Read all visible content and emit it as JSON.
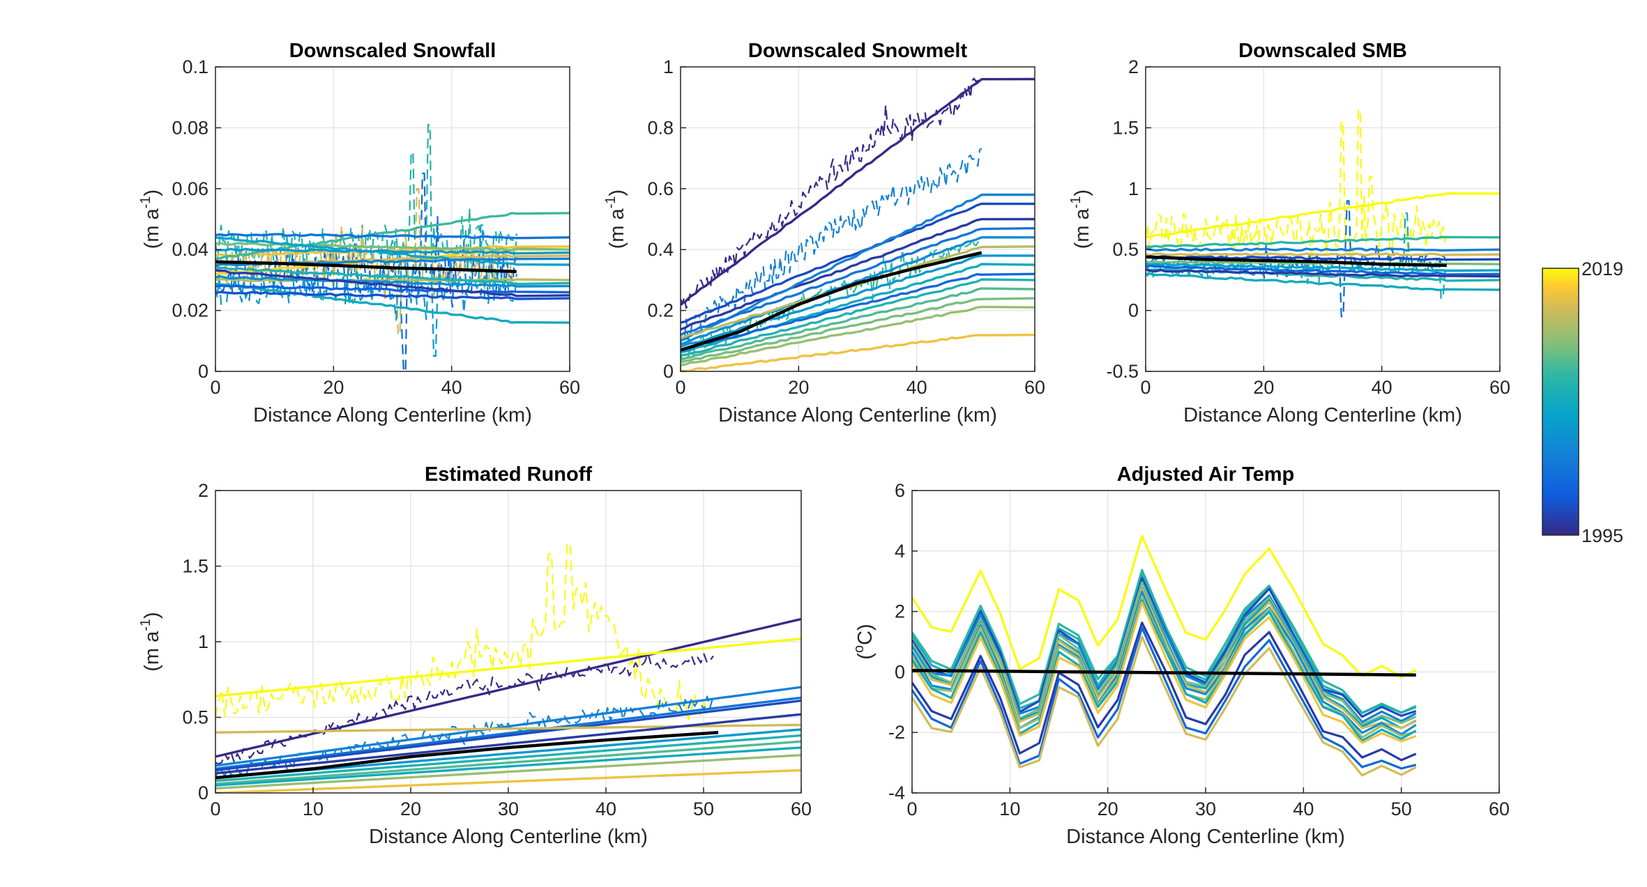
{
  "chart_data": [
    {
      "type": "line",
      "title": "Downscaled Snowfall",
      "xlabel": "Distance Along Centerline (km)",
      "ylabel_main": "(m a",
      "ylabel_sup": "-1",
      "ylabel_close": ")",
      "xlim": [
        0,
        60
      ],
      "ylim": [
        0,
        0.1
      ],
      "xticks": [
        0,
        20,
        40,
        60
      ],
      "xtick_labels": [
        "0",
        "20",
        "40",
        "60"
      ],
      "yticks": [
        0,
        0.02,
        0.04,
        0.06,
        0.08,
        0.1
      ],
      "ytick_labels": [
        "0",
        "0.02",
        "0.04",
        "0.06",
        "0.08",
        "0.1"
      ],
      "grid": true,
      "mean": {
        "x": [
          0,
          10,
          20,
          30,
          40,
          51
        ],
        "y": [
          0.036,
          0.0355,
          0.0348,
          0.034,
          0.0335,
          0.0328
        ]
      },
      "fan": [
        {
          "t": 0.95,
          "y0": 0.032,
          "y1": 0.04
        },
        {
          "t": 0.9,
          "y0": 0.038,
          "y1": 0.041
        },
        {
          "t": 0.85,
          "y0": 0.035,
          "y1": 0.038
        },
        {
          "t": 0.8,
          "y0": 0.03,
          "y1": 0.03
        },
        {
          "t": 0.7,
          "y0": 0.042,
          "y1": 0.04
        },
        {
          "t": 0.62,
          "y0": 0.037,
          "y1": 0.052
        },
        {
          "t": 0.55,
          "y0": 0.034,
          "y1": 0.029
        },
        {
          "t": 0.5,
          "y0": 0.029,
          "y1": 0.016
        },
        {
          "t": 0.45,
          "y0": 0.044,
          "y1": 0.035
        },
        {
          "t": 0.4,
          "y0": 0.04,
          "y1": 0.039
        },
        {
          "t": 0.35,
          "y0": 0.031,
          "y1": 0.028
        },
        {
          "t": 0.3,
          "y0": 0.035,
          "y1": 0.037
        },
        {
          "t": 0.25,
          "y0": 0.045,
          "y1": 0.044
        },
        {
          "t": 0.18,
          "y0": 0.028,
          "y1": 0.026
        },
        {
          "t": 0.12,
          "y0": 0.026,
          "y1": 0.024
        },
        {
          "t": 0.05,
          "y0": 0.033,
          "y1": 0.025
        }
      ],
      "fan_x1": 60,
      "spiky": [
        {
          "t": 0.55,
          "base": 0.04,
          "amp": 0.008,
          "spikes": [
            [
              33,
              0.072
            ],
            [
              36,
              0.081
            ]
          ]
        },
        {
          "t": 0.2,
          "base": 0.032,
          "amp": 0.007,
          "spikes": [
            [
              32,
              0.0
            ],
            [
              35,
              0.065
            ]
          ]
        },
        {
          "t": 0.85,
          "base": 0.035,
          "amp": 0.007,
          "spikes": [
            [
              34,
              0.06
            ],
            [
              31,
              0.012
            ]
          ]
        },
        {
          "t": 0.4,
          "base": 0.028,
          "amp": 0.006,
          "spikes": [
            [
              37,
              0.005
            ],
            [
              45,
              0.048
            ]
          ]
        }
      ],
      "spiky_x1": 51
    },
    {
      "type": "line",
      "title": "Downscaled Snowmelt",
      "xlabel": "Distance Along Centerline (km)",
      "ylabel_main": "(m a",
      "ylabel_sup": "-1",
      "ylabel_close": ")",
      "xlim": [
        0,
        60
      ],
      "ylim": [
        0,
        1
      ],
      "xticks": [
        0,
        20,
        40,
        60
      ],
      "xtick_labels": [
        "0",
        "20",
        "40",
        "60"
      ],
      "yticks": [
        0,
        0.2,
        0.4,
        0.6,
        0.8,
        1
      ],
      "ytick_labels": [
        "0",
        "0.2",
        "0.4",
        "0.6",
        "0.8",
        "1"
      ],
      "grid": true,
      "mean": {
        "x": [
          0,
          10,
          20,
          30,
          40,
          51
        ],
        "y": [
          0.07,
          0.13,
          0.22,
          0.29,
          0.34,
          0.39
        ]
      },
      "fan": [
        {
          "t": 0.0,
          "y0": 0.22,
          "y1": 0.96
        },
        {
          "t": 0.1,
          "y0": 0.16,
          "y1": 0.55
        },
        {
          "t": 0.05,
          "y0": 0.14,
          "y1": 0.5
        },
        {
          "t": 0.3,
          "y0": 0.1,
          "y1": 0.58
        },
        {
          "t": 0.25,
          "y0": 0.12,
          "y1": 0.47
        },
        {
          "t": 0.35,
          "y0": 0.09,
          "y1": 0.44
        },
        {
          "t": 0.8,
          "y0": 0.11,
          "y1": 0.41
        },
        {
          "t": 0.4,
          "y0": 0.08,
          "y1": 0.38
        },
        {
          "t": 0.5,
          "y0": 0.06,
          "y1": 0.35
        },
        {
          "t": 0.2,
          "y0": 0.07,
          "y1": 0.32
        },
        {
          "t": 0.55,
          "y0": 0.05,
          "y1": 0.3
        },
        {
          "t": 0.65,
          "y0": 0.04,
          "y1": 0.27
        },
        {
          "t": 0.7,
          "y0": 0.03,
          "y1": 0.24
        },
        {
          "t": 0.75,
          "y0": 0.02,
          "y1": 0.21
        },
        {
          "t": 0.9,
          "y0": 0.0,
          "y1": 0.12
        }
      ],
      "fan_x1": 60,
      "spiky": [
        {
          "t": 0.0,
          "base_curve": [
            [
              0,
              0.22
            ],
            [
              20,
              0.55
            ],
            [
              35,
              0.8
            ],
            [
              45,
              0.84
            ],
            [
              51,
              0.96
            ]
          ],
          "amp": 0.03
        },
        {
          "t": 0.3,
          "base_curve": [
            [
              0,
              0.12
            ],
            [
              25,
              0.45
            ],
            [
              51,
              0.7
            ]
          ],
          "amp": 0.04
        },
        {
          "t": 0.6,
          "base_curve": [
            [
              0,
              0.06
            ],
            [
              25,
              0.25
            ],
            [
              51,
              0.42
            ]
          ],
          "amp": 0.03
        }
      ],
      "spiky_x1": 51
    },
    {
      "type": "line",
      "title": "Downscaled SMB",
      "xlabel": "Distance Along Centerline (km)",
      "ylabel_main": "(m a",
      "ylabel_sup": "-1",
      "ylabel_close": ")",
      "xlim": [
        0,
        60
      ],
      "ylim": [
        -0.5,
        2
      ],
      "xticks": [
        0,
        20,
        40,
        60
      ],
      "xtick_labels": [
        "0",
        "20",
        "40",
        "60"
      ],
      "yticks": [
        -0.5,
        0,
        0.5,
        1,
        1.5,
        2
      ],
      "ytick_labels": [
        "-0.5",
        "0",
        "0.5",
        "1",
        "1.5",
        "2"
      ],
      "grid": true,
      "mean": {
        "x": [
          0,
          10,
          20,
          30,
          40,
          51
        ],
        "y": [
          0.44,
          0.42,
          0.41,
          0.4,
          0.38,
          0.37
        ]
      },
      "fan": [
        {
          "t": 1.0,
          "y0": 0.6,
          "y1": 0.96
        },
        {
          "t": 0.6,
          "y0": 0.52,
          "y1": 0.6
        },
        {
          "t": 0.3,
          "y0": 0.5,
          "y1": 0.5
        },
        {
          "t": 0.85,
          "y0": 0.46,
          "y1": 0.46
        },
        {
          "t": 0.1,
          "y0": 0.44,
          "y1": 0.42
        },
        {
          "t": 0.7,
          "y0": 0.4,
          "y1": 0.38
        },
        {
          "t": 0.45,
          "y0": 0.38,
          "y1": 0.33
        },
        {
          "t": 0.2,
          "y0": 0.36,
          "y1": 0.3
        },
        {
          "t": 0.55,
          "y0": 0.34,
          "y1": 0.25
        },
        {
          "t": 0.05,
          "y0": 0.33,
          "y1": 0.28
        },
        {
          "t": 0.5,
          "y0": 0.3,
          "y1": 0.17
        }
      ],
      "fan_x1": 60,
      "spiky": [
        {
          "t": 1.0,
          "base": 0.65,
          "amp": 0.15,
          "spikes": [
            [
              33,
              1.55
            ],
            [
              36,
              1.65
            ],
            [
              38,
              1.1
            ]
          ]
        },
        {
          "t": 0.2,
          "base": 0.4,
          "amp": 0.06,
          "spikes": [
            [
              34,
              0.9
            ],
            [
              33,
              -0.05
            ]
          ]
        },
        {
          "t": 0.5,
          "base": 0.35,
          "amp": 0.08,
          "spikes": [
            [
              44,
              0.8
            ],
            [
              50,
              0.1
            ]
          ]
        }
      ],
      "spiky_x1": 51
    },
    {
      "type": "line",
      "title": "Estimated Runoff",
      "xlabel": "Distance Along Centerline (km)",
      "ylabel_main": "(m a",
      "ylabel_sup": "-1",
      "ylabel_close": ")",
      "xlim": [
        0,
        60
      ],
      "ylim": [
        0,
        2
      ],
      "xticks": [
        0,
        10,
        20,
        30,
        40,
        50,
        60
      ],
      "xtick_labels": [
        "0",
        "10",
        "20",
        "30",
        "40",
        "50",
        "60"
      ],
      "yticks": [
        0,
        0.5,
        1,
        1.5,
        2
      ],
      "ytick_labels": [
        "0",
        "0.5",
        "1",
        "1.5",
        "2"
      ],
      "grid": true,
      "mean": {
        "x": [
          0,
          10,
          20,
          30,
          40,
          51.5
        ],
        "y": [
          0.1,
          0.16,
          0.24,
          0.3,
          0.35,
          0.4
        ]
      },
      "fan": [
        {
          "t": 0.0,
          "y0": 0.24,
          "y1": 1.15
        },
        {
          "t": 1.0,
          "y0": 0.64,
          "y1": 1.02
        },
        {
          "t": 0.3,
          "y0": 0.18,
          "y1": 0.7
        },
        {
          "t": 0.25,
          "y0": 0.16,
          "y1": 0.63
        },
        {
          "t": 0.1,
          "y0": 0.15,
          "y1": 0.61
        },
        {
          "t": 0.85,
          "y0": 0.4,
          "y1": 0.45
        },
        {
          "t": 0.05,
          "y0": 0.13,
          "y1": 0.52
        },
        {
          "t": 0.4,
          "y0": 0.1,
          "y1": 0.42
        },
        {
          "t": 0.55,
          "y0": 0.08,
          "y1": 0.38
        },
        {
          "t": 0.65,
          "y0": 0.06,
          "y1": 0.34
        },
        {
          "t": 0.5,
          "y0": 0.05,
          "y1": 0.3
        },
        {
          "t": 0.75,
          "y0": 0.03,
          "y1": 0.25
        },
        {
          "t": 0.9,
          "y0": 0.0,
          "y1": 0.15
        }
      ],
      "fan_x1": 60,
      "spiky": [
        {
          "t": 1.0,
          "base_curve": [
            [
              0,
              0.6
            ],
            [
              20,
              0.7
            ],
            [
              30,
              0.95
            ],
            [
              38,
              1.3
            ],
            [
              45,
              0.6
            ],
            [
              51,
              0.55
            ]
          ],
          "amp": 0.1,
          "spikes": [
            [
              34,
              1.58
            ],
            [
              36,
              1.65
            ]
          ]
        },
        {
          "t": 0.0,
          "base_curve": [
            [
              0,
              0.2
            ],
            [
              25,
              0.7
            ],
            [
              51,
              0.9
            ]
          ],
          "amp": 0.04
        },
        {
          "t": 0.3,
          "base_curve": [
            [
              0,
              0.12
            ],
            [
              25,
              0.4
            ],
            [
              51,
              0.6
            ]
          ],
          "amp": 0.05
        }
      ],
      "spiky_x1": 51
    },
    {
      "type": "line",
      "title": "Adjusted Air Temp",
      "xlabel": "Distance Along Centerline (km)",
      "ylabel_main": "(",
      "ylabel_sup": "o",
      "ylabel_close": "C)",
      "xlim": [
        0,
        60
      ],
      "ylim": [
        -4,
        6
      ],
      "xticks": [
        0,
        10,
        20,
        30,
        40,
        50,
        60
      ],
      "xtick_labels": [
        "0",
        "10",
        "20",
        "30",
        "40",
        "50",
        "60"
      ],
      "yticks": [
        -4,
        -2,
        0,
        2,
        4,
        6
      ],
      "ytick_labels": [
        "-4",
        "-2",
        "0",
        "2",
        "4",
        "6"
      ],
      "grid": true,
      "mean": {
        "x": [
          0,
          51.5
        ],
        "y": [
          0.05,
          -0.1
        ]
      },
      "temp_profile": {
        "x": [
          0,
          2,
          4,
          7,
          9,
          11,
          13,
          15,
          17,
          19,
          21,
          23.5,
          26,
          28,
          30,
          32,
          34,
          36.5,
          39,
          42,
          44,
          46,
          48,
          50,
          51.5
        ],
        "y": [
          1.0,
          0.0,
          -0.2,
          1.9,
          0.5,
          -1.4,
          -1.1,
          1.3,
          0.9,
          -0.6,
          0.3,
          3.0,
          1.2,
          -0.2,
          -0.4,
          0.6,
          1.8,
          2.6,
          1.2,
          -0.6,
          -0.9,
          -1.6,
          -1.3,
          -1.6,
          -1.4
        ]
      },
      "offsets": [
        {
          "t": 1.0,
          "dy": 1.5
        },
        {
          "t": 0.6,
          "dy": 0.3
        },
        {
          "t": 0.55,
          "dy": 0.2
        },
        {
          "t": 0.1,
          "dy": 0.1
        },
        {
          "t": 0.3,
          "dy": 0.0
        },
        {
          "t": 0.7,
          "dy": -0.1
        },
        {
          "t": 0.45,
          "dy": -0.2
        },
        {
          "t": 0.85,
          "dy": -0.3
        },
        {
          "t": 0.35,
          "dy": -0.4
        },
        {
          "t": 0.75,
          "dy": -0.5
        },
        {
          "t": 0.5,
          "dy": -0.6
        },
        {
          "t": 0.9,
          "dy": -0.75
        },
        {
          "t": 0.05,
          "dy": -1.3
        },
        {
          "t": 0.2,
          "dy": -1.6
        },
        {
          "t": 0.85,
          "dy": -1.8
        }
      ]
    }
  ],
  "colorbar": {
    "min_label": "1995",
    "max_label": "2019",
    "colormap": "parula"
  }
}
